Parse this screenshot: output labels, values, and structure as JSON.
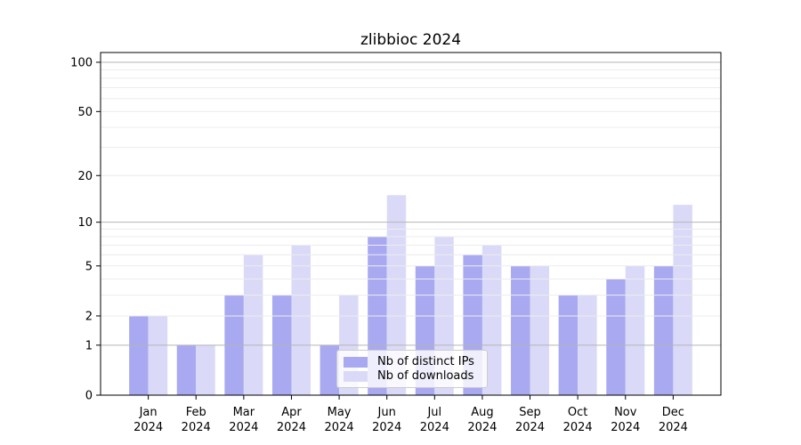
{
  "title": "zlibbioc 2024",
  "chart_data": {
    "type": "bar",
    "title": "zlibbioc 2024",
    "months": [
      "Jan",
      "Feb",
      "Mar",
      "Apr",
      "May",
      "Jun",
      "Jul",
      "Aug",
      "Sep",
      "Oct",
      "Nov",
      "Dec"
    ],
    "year": "2024",
    "categories": [
      "Jan 2024",
      "Feb 2024",
      "Mar 2024",
      "Apr 2024",
      "May 2024",
      "Jun 2024",
      "Jul 2024",
      "Aug 2024",
      "Sep 2024",
      "Oct 2024",
      "Nov 2024",
      "Dec 2024"
    ],
    "series": [
      {
        "name": "Nb of distinct IPs",
        "color": "#a9a9f1",
        "values": [
          2,
          1,
          3,
          3,
          1,
          8,
          5,
          6,
          5,
          3,
          4,
          5
        ]
      },
      {
        "name": "Nb of downloads",
        "color": "#dadaf8",
        "values": [
          2,
          1,
          6,
          7,
          3,
          15,
          8,
          7,
          5,
          3,
          5,
          13
        ]
      }
    ],
    "y_ticks": [
      0,
      1,
      2,
      5,
      10,
      20,
      50,
      100
    ],
    "y_scale": "log1p",
    "ylim": [
      0,
      115
    ],
    "grid": true,
    "legend_position": "bottom-center",
    "colors": {
      "major_grid": "#b5b5b5",
      "minor_grid": "#ececec",
      "axis": "#000000"
    }
  }
}
